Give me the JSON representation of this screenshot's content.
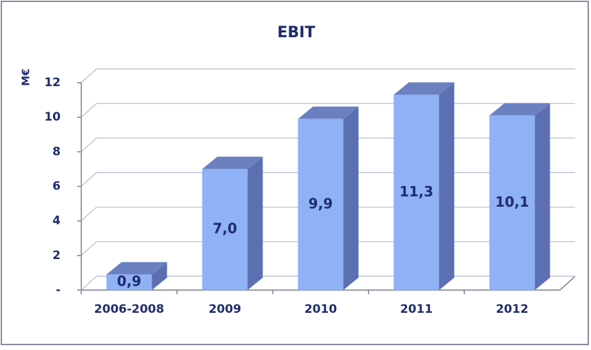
{
  "chart_data": {
    "type": "bar3d",
    "title": "EBIT",
    "y_label": "M€",
    "categories": [
      "2006-2008",
      "2009",
      "2010",
      "2011",
      "2012"
    ],
    "values": [
      0.9,
      7.0,
      9.9,
      11.3,
      10.1
    ],
    "value_labels": [
      "0,9",
      "7,0",
      "9,9",
      "11,3",
      "10,1"
    ],
    "color": "#8fb1f5",
    "ylim": [
      0,
      12
    ],
    "yticks": [
      {
        "value": 0,
        "label": "-"
      },
      2,
      4,
      6,
      8,
      10,
      12
    ],
    "grid": true
  }
}
